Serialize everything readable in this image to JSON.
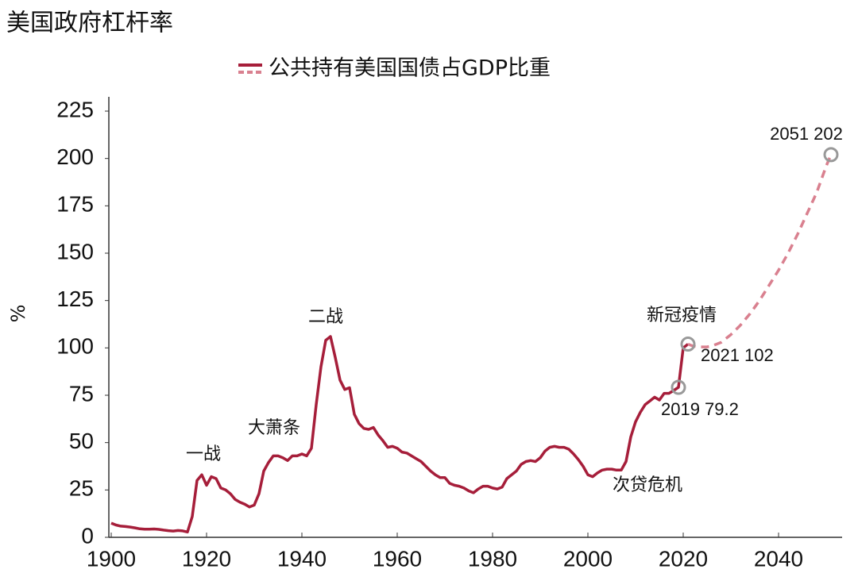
{
  "chart_data": {
    "type": "line",
    "title": "美国政府杠杆率",
    "y_label": "%",
    "series": [
      {
        "name": "公共持有美国国债占GDP比重",
        "color": "#a61e3a",
        "x": [
          1900,
          1901,
          1902,
          1903,
          1904,
          1905,
          1906,
          1907,
          1908,
          1909,
          1910,
          1911,
          1912,
          1913,
          1914,
          1915,
          1916,
          1917,
          1918,
          1919,
          1920,
          1921,
          1922,
          1923,
          1924,
          1925,
          1926,
          1927,
          1928,
          1929,
          1930,
          1931,
          1932,
          1933,
          1934,
          1935,
          1936,
          1937,
          1938,
          1939,
          1940,
          1941,
          1942,
          1943,
          1944,
          1945,
          1946,
          1947,
          1948,
          1949,
          1950,
          1951,
          1952,
          1953,
          1954,
          1955,
          1956,
          1957,
          1958,
          1959,
          1960,
          1961,
          1962,
          1963,
          1964,
          1965,
          1966,
          1967,
          1968,
          1969,
          1970,
          1971,
          1972,
          1973,
          1974,
          1975,
          1976,
          1977,
          1978,
          1979,
          1980,
          1981,
          1982,
          1983,
          1984,
          1985,
          1986,
          1987,
          1988,
          1989,
          1990,
          1991,
          1992,
          1993,
          1994,
          1995,
          1996,
          1997,
          1998,
          1999,
          2000,
          2001,
          2002,
          2003,
          2004,
          2005,
          2006,
          2007,
          2008,
          2009,
          2010,
          2011,
          2012,
          2013,
          2014,
          2015,
          2016,
          2017,
          2018,
          2019,
          2020,
          2021
        ],
        "values": [
          7.5,
          6.5,
          5.9,
          5.7,
          5.4,
          5,
          4.5,
          4.3,
          4.3,
          4.4,
          4.2,
          3.8,
          3.5,
          3.3,
          3.6,
          3.4,
          2.8,
          11,
          30,
          33,
          27.5,
          32,
          31,
          26,
          25,
          23,
          20,
          18.5,
          17.5,
          16,
          17,
          23,
          35,
          39.5,
          43,
          43,
          42,
          40.5,
          43,
          43,
          44,
          43,
          47,
          70,
          90,
          104,
          106,
          95,
          83,
          78,
          79,
          65,
          60,
          57.5,
          57,
          58,
          54,
          51,
          47.5,
          48,
          47,
          45,
          44.5,
          43,
          41.5,
          40,
          37.5,
          35,
          33,
          31.5,
          31.5,
          28.5,
          27.5,
          27,
          26,
          24.5,
          23.5,
          25.5,
          27,
          27,
          26,
          25.5,
          26.5,
          31,
          33,
          35,
          38.5,
          40,
          40.5,
          40,
          42,
          45.5,
          47.5,
          48,
          47.5,
          47.5,
          46.5,
          44,
          41,
          37.5,
          33,
          32,
          34,
          35.5,
          36,
          36,
          35.5,
          35.5,
          40,
          53,
          61,
          66,
          70,
          72,
          74,
          72.5,
          76,
          76,
          77.5,
          79.2,
          100,
          102
        ]
      },
      {
        "color": "#d9808f",
        "dashed": true,
        "x": [
          2021,
          2022,
          2023,
          2024,
          2025,
          2026,
          2027,
          2028,
          2029,
          2030,
          2032,
          2034,
          2036,
          2038,
          2040,
          2042,
          2044,
          2046,
          2048,
          2050,
          2051
        ],
        "values": [
          102,
          101,
          100.5,
          100.5,
          100.5,
          101,
          102,
          103,
          105,
          107,
          112,
          118,
          125,
          133,
          141,
          150,
          160,
          171,
          182,
          196,
          202
        ]
      }
    ],
    "point_labels": [
      {
        "x": 2019,
        "value": 79.2,
        "label": "2019 79.2"
      },
      {
        "x": 2021,
        "value": 102,
        "label": "2021 102"
      },
      {
        "x": 2051,
        "value": 202,
        "label": "2051 202"
      }
    ],
    "annotations": [
      "一战",
      "大萧条",
      "二战",
      "新冠疫情",
      "次贷危机"
    ],
    "xlim": [
      1900,
      2053
    ],
    "xticks": [
      1900,
      1920,
      1940,
      1960,
      1980,
      2000,
      2020,
      2040
    ],
    "ylim": [
      0,
      225
    ],
    "yticks": [
      0,
      25,
      50,
      75,
      100,
      125,
      150,
      175,
      200,
      225
    ],
    "grid": false
  }
}
